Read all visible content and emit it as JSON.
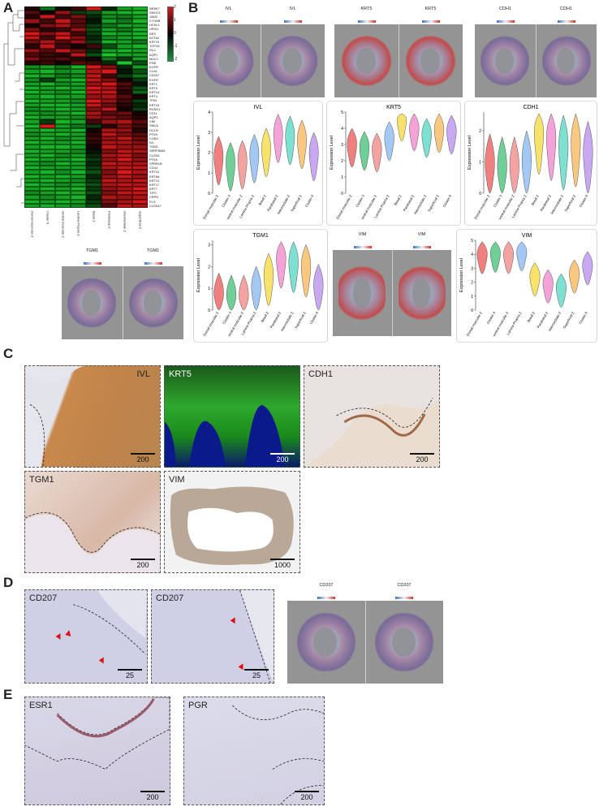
{
  "panels": {
    "a": "A",
    "b": "B",
    "c": "C",
    "d": "D",
    "e": "E"
  },
  "heatmap": {
    "genes": [
      "NR5E7",
      "SMOC1",
      "JAM2",
      "CYG8B",
      "UCHL1",
      "UPID1",
      "DES",
      "ACTA2",
      "KRT19",
      "TOP2A",
      "ISL1",
      "AQP1",
      "MUC1",
      "PI3K",
      "EGFR",
      "CLN1",
      "CD207",
      "EGFR",
      "KRT1",
      "KRT5",
      "KRT14",
      "KRT4",
      "TP63",
      "KRT15",
      "RUNX1",
      "CD11",
      "AQP3",
      "VIM",
      "SNCA",
      "OCLN",
      "PTK8",
      "CLIB2",
      "IVL",
      "TGM1",
      "SERPINB3",
      "CLDN1",
      "PTK6",
      "SPRR1B",
      "CD44",
      "KRT10",
      "KRT6A",
      "KRT13",
      "KRT17",
      "KRT7",
      "TJP1",
      "CRPN",
      "PLG",
      "CLDN17"
    ],
    "columns": [
      "Dorsal muscular Z",
      "Cluster 6",
      "ventral muscular Z",
      "Lamina Propria Z",
      "Basal Z",
      "Parabasal Z",
      "Intermediate Z",
      "Superficial Z"
    ],
    "colorbar_ticks": [
      "2",
      "1",
      "0",
      "-1",
      "-2"
    ],
    "colors": {
      "high": "#d7191c",
      "mid": "#000000",
      "low": "#1a9641"
    },
    "values": [
      [
        0.3,
        -1.2,
        -0.2,
        0.6,
        2.2,
        -0.4,
        -1.6,
        -1.8
      ],
      [
        0.8,
        0.2,
        1.4,
        -0.6,
        -0.8,
        -1.6,
        -1.8,
        -1.9
      ],
      [
        0.4,
        1.9,
        0.6,
        1.2,
        -0.4,
        -1.4,
        -1.2,
        -1.6
      ],
      [
        1.4,
        0.6,
        1.8,
        0.8,
        -0.2,
        -1.6,
        -1.2,
        -1.8
      ],
      [
        0.2,
        1.2,
        1.6,
        0.8,
        -0.6,
        -1.2,
        -1.6,
        -1.6
      ],
      [
        1.2,
        0.4,
        0.6,
        1.4,
        -0.8,
        -1.6,
        -1.2,
        -1.8
      ],
      [
        2.0,
        1.2,
        1.8,
        0.6,
        -0.6,
        -1.8,
        -1.6,
        -1.8
      ],
      [
        1.8,
        0.6,
        2.0,
        1.2,
        -0.4,
        -1.4,
        -1.6,
        -1.8
      ],
      [
        1.0,
        1.6,
        0.8,
        1.4,
        -0.6,
        -1.8,
        -1.6,
        -1.2
      ],
      [
        0.4,
        1.8,
        0.6,
        0.2,
        0.6,
        -0.8,
        -1.6,
        -1.8
      ],
      [
        1.4,
        0.8,
        1.8,
        1.0,
        -0.4,
        -1.6,
        -1.8,
        -1.6
      ],
      [
        0.8,
        0.6,
        0.4,
        1.8,
        -0.8,
        -2.0,
        -1.6,
        -1.6
      ],
      [
        1.2,
        0.6,
        0.8,
        0.4,
        0.2,
        -1.2,
        -0.6,
        -1.6
      ],
      [
        0.4,
        0.6,
        0.2,
        0.8,
        0.6,
        -0.4,
        -2.0,
        -0.8
      ],
      [
        -1.4,
        -1.6,
        -1.2,
        -1.8,
        2.0,
        1.2,
        -0.4,
        -1.6
      ],
      [
        -1.6,
        -1.8,
        -1.4,
        -1.6,
        1.6,
        2.0,
        -0.2,
        -0.8
      ],
      [
        -1.8,
        -1.6,
        -1.2,
        -1.4,
        1.8,
        0.6,
        -0.6,
        -1.2
      ],
      [
        -1.4,
        -0.6,
        -1.6,
        -1.8,
        1.8,
        1.2,
        0.2,
        -0.6
      ],
      [
        -1.6,
        -1.8,
        -1.4,
        -1.6,
        1.4,
        2.0,
        0.8,
        -0.2
      ],
      [
        -1.8,
        -1.6,
        -1.8,
        -1.6,
        2.0,
        1.6,
        0.6,
        -0.8
      ],
      [
        -1.8,
        -1.6,
        -1.4,
        -1.8,
        1.8,
        1.8,
        0.4,
        -1.0
      ],
      [
        -1.6,
        -1.8,
        -1.6,
        -1.6,
        1.4,
        1.6,
        0.8,
        0.2
      ],
      [
        -1.8,
        -1.6,
        -1.6,
        -1.4,
        2.0,
        1.4,
        0.6,
        -0.6
      ],
      [
        -1.6,
        -1.8,
        -1.8,
        -1.6,
        1.8,
        1.0,
        0.4,
        -0.4
      ],
      [
        -1.4,
        -1.6,
        -1.8,
        -1.6,
        1.2,
        1.8,
        0.2,
        -0.6
      ],
      [
        -1.6,
        -1.4,
        -1.6,
        -1.8,
        1.6,
        0.8,
        1.0,
        0.2
      ],
      [
        -1.8,
        -1.6,
        -1.6,
        -1.4,
        1.4,
        1.2,
        0.8,
        0.4
      ],
      [
        -1.6,
        -0.6,
        -1.8,
        -1.6,
        0.6,
        1.4,
        1.6,
        0.8
      ],
      [
        -1.8,
        2.0,
        -1.6,
        -1.2,
        -0.6,
        0.4,
        1.2,
        0.6
      ],
      [
        -1.6,
        -1.8,
        -1.6,
        -1.8,
        0.2,
        1.6,
        1.4,
        0.4
      ],
      [
        -1.4,
        -1.6,
        -1.8,
        -1.6,
        0.4,
        1.8,
        1.2,
        0.8
      ],
      [
        -1.6,
        -1.8,
        -1.4,
        -1.6,
        0.6,
        1.4,
        1.8,
        1.0
      ],
      [
        -1.8,
        -1.6,
        -1.6,
        -1.8,
        0.4,
        1.6,
        1.6,
        1.2
      ],
      [
        -1.6,
        -1.8,
        -1.8,
        -1.6,
        0.2,
        1.8,
        1.4,
        1.4
      ],
      [
        -1.8,
        -1.6,
        -1.6,
        -1.4,
        -0.2,
        1.2,
        1.8,
        1.6
      ],
      [
        -1.6,
        -1.8,
        -1.4,
        -1.6,
        -0.4,
        1.6,
        1.8,
        1.2
      ],
      [
        -1.8,
        -1.6,
        -1.6,
        -1.8,
        -0.6,
        1.4,
        2.0,
        1.4
      ],
      [
        -1.6,
        -1.4,
        -1.8,
        -1.6,
        -0.4,
        1.8,
        1.6,
        1.6
      ],
      [
        -1.8,
        -1.6,
        -1.6,
        -1.6,
        -0.6,
        1.6,
        1.8,
        1.8
      ],
      [
        -1.6,
        -1.8,
        -1.4,
        -1.8,
        -0.8,
        1.2,
        2.0,
        1.6
      ],
      [
        -1.8,
        -1.6,
        -1.8,
        -1.6,
        -0.4,
        1.4,
        1.8,
        1.4
      ],
      [
        -1.6,
        -1.8,
        -1.6,
        -1.4,
        -0.6,
        1.8,
        1.6,
        1.8
      ],
      [
        -1.8,
        -1.6,
        -1.4,
        -1.6,
        -0.8,
        1.6,
        1.8,
        1.6
      ],
      [
        -1.6,
        -1.8,
        -1.6,
        -1.8,
        -0.6,
        1.4,
        1.6,
        2.0
      ],
      [
        -1.4,
        -1.6,
        -1.8,
        -1.6,
        -0.8,
        1.2,
        1.8,
        1.8
      ],
      [
        -1.6,
        -1.4,
        -1.6,
        -1.8,
        -0.4,
        1.6,
        1.4,
        1.6
      ],
      [
        -1.8,
        -1.6,
        -1.8,
        -1.6,
        -0.6,
        1.2,
        1.6,
        2.0
      ],
      [
        -1.6,
        -1.8,
        -1.6,
        -1.4,
        -0.8,
        0.8,
        1.8,
        1.6
      ]
    ]
  },
  "spatial": {
    "ivl": {
      "title": "IVL",
      "ticks": "0 1 2 3 4"
    },
    "krt5": {
      "title": "KRT5",
      "ticks": "0 1 2 3 4"
    },
    "cdh1": {
      "title": "CDH1",
      "ticks": "0 1 2"
    },
    "tgm1": {
      "title": "TGM1",
      "ticks": "0 1 2 3"
    },
    "vim": {
      "title": "VIM",
      "ticks": "0 1 2 3 4"
    },
    "cd207": {
      "title": "CD207",
      "ticks": "0.0 0.2 0.4 0.6"
    }
  },
  "violin": {
    "ylabel": "Expression Level",
    "categories": [
      "Dorsal muscular Z",
      "Cluster 3",
      "ventral muscular Z",
      "Lamina Propria Z",
      "Basal Z",
      "Parabasal Z",
      "Intermediate Z",
      "Superficial Z",
      "Cluster 6"
    ],
    "colors": [
      "#f08080",
      "#6fcf97",
      "#f4a3a3",
      "#a3c8f4",
      "#f7e36b",
      "#f4a3d8",
      "#7de0d0",
      "#f8c880",
      "#c8a8f0"
    ],
    "panels": [
      {
        "key": "ivl",
        "title": "IVL",
        "yticks": [
          "0",
          "1",
          "2",
          "3",
          "4"
        ],
        "ymax": 4,
        "medians": [
          1.8,
          1.5,
          1.6,
          1.9,
          2.2,
          2.9,
          2.8,
          2.6,
          2.0
        ]
      },
      {
        "key": "krt5",
        "title": "KRT5",
        "yticks": [
          "0",
          "1",
          "2",
          "3",
          "4",
          "5"
        ],
        "ymax": 5,
        "medians": [
          3.0,
          2.8,
          2.7,
          3.4,
          4.6,
          4.0,
          3.6,
          3.9,
          3.8
        ]
      },
      {
        "key": "cdh1",
        "title": "CDH1",
        "yticks": [
          "0",
          "1",
          "2"
        ],
        "ymax": 2.6,
        "medians": [
          0.9,
          0.8,
          0.8,
          1.0,
          2.0,
          1.8,
          1.5,
          1.6,
          1.3
        ]
      },
      {
        "key": "tgm1",
        "title": "TGM1",
        "yticks": [
          "0",
          "1",
          "2",
          "3"
        ],
        "ymax": 3.2,
        "medians": [
          0.7,
          0.6,
          0.6,
          1.0,
          1.6,
          2.4,
          2.2,
          2.0,
          1.1
        ]
      },
      {
        "key": "vim",
        "title": "VIM",
        "yticks": [
          "0",
          "1",
          "2",
          "3",
          "4",
          "5"
        ],
        "ymax": 5,
        "medians": [
          4.0,
          4.1,
          4.0,
          4.2,
          2.4,
          1.9,
          1.6,
          2.6,
          3.2
        ]
      }
    ]
  },
  "micro": {
    "ivl": {
      "label": "IVL",
      "scale": "200"
    },
    "krt5": {
      "label": "KRT5",
      "scale": "200"
    },
    "cdh1": {
      "label": "CDH1",
      "scale": "200"
    },
    "tgm1": {
      "label": "TGM1",
      "scale": "200"
    },
    "vim": {
      "label": "VIM",
      "scale": "1000"
    },
    "cd207a": {
      "label": "CD207",
      "scale": "25"
    },
    "cd207b": {
      "label": "CD207",
      "scale": "25"
    },
    "esr1": {
      "label": "ESR1",
      "scale": "200"
    },
    "pgr": {
      "label": "PGR",
      "scale": "200"
    }
  }
}
